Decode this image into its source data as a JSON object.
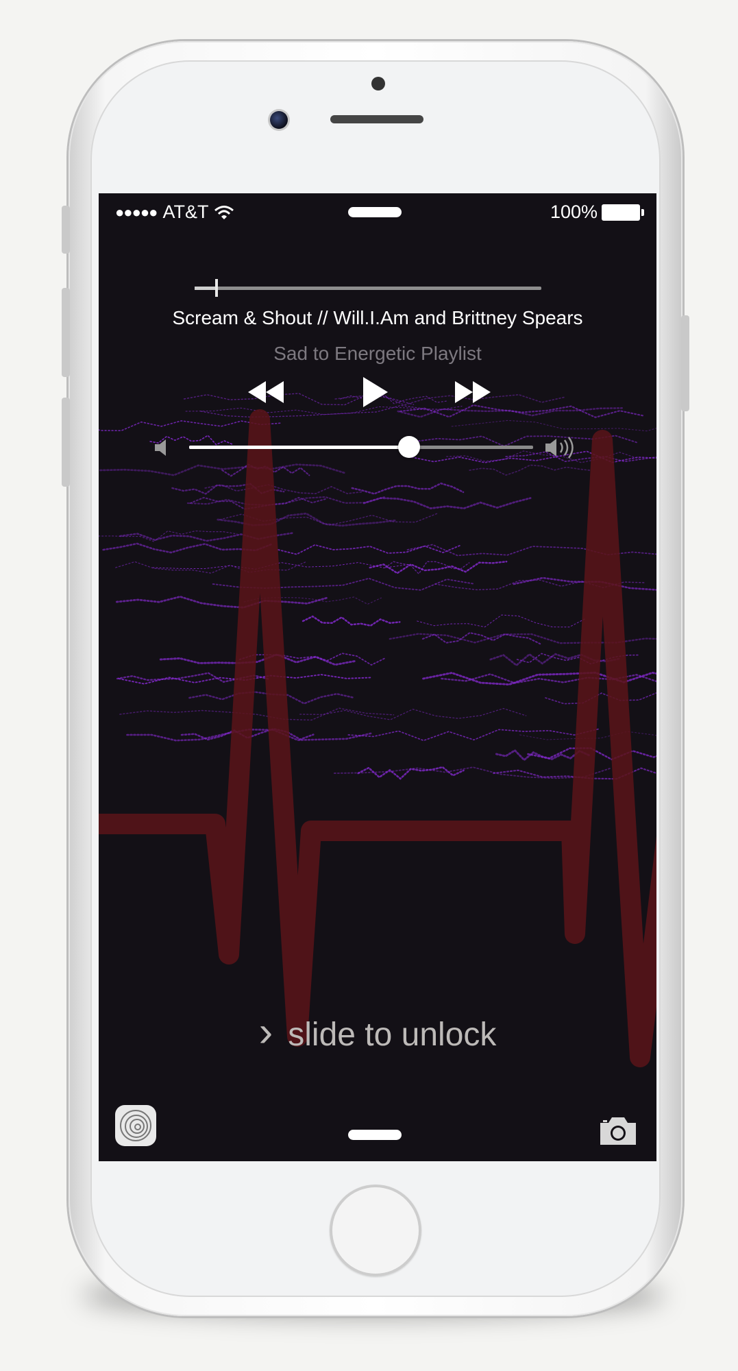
{
  "status_bar": {
    "signal": "●●●●●",
    "carrier": "AT&T",
    "battery": "100%"
  },
  "now_playing": {
    "track": "Scream & Shout // Will.I.Am and Brittney Spears",
    "playlist": "Sad to Energetic Playlist",
    "track_progress": 0.06,
    "volume_level": 0.64
  },
  "controls": {
    "rewind_icon": "rewind-icon",
    "play_icon": "play-icon",
    "fast_forward_icon": "fast-forward-icon",
    "volume_low_icon": "speaker-low-icon",
    "volume_high_icon": "speaker-high-icon"
  },
  "lock_screen": {
    "unlock_label": "slide to unlock",
    "chevron": "›"
  },
  "colors": {
    "screen_background": "#131016",
    "heartbeat": "#5a1419",
    "waveform": "#8a2bd8",
    "playlist_text": "#7d7980"
  }
}
